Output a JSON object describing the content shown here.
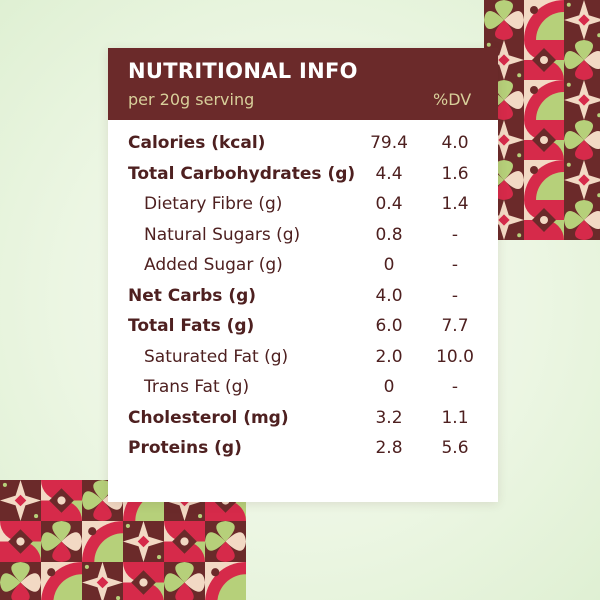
{
  "card": {
    "title": "NUTRITIONAL INFO",
    "subtitle": "per 20g serving",
    "dv_header": "%DV"
  },
  "rows": [
    {
      "label": "Calories (kcal)",
      "amount": "79.4",
      "dv": "4.0",
      "bold": true
    },
    {
      "label": "Total Carbohydrates (g)",
      "amount": "4.4",
      "dv": "1.6",
      "bold": true
    },
    {
      "label": "Dietary Fibre (g)",
      "amount": "0.4",
      "dv": "1.4",
      "bold": false
    },
    {
      "label": "Natural Sugars (g)",
      "amount": "0.8",
      "dv": "-",
      "bold": false
    },
    {
      "label": "Added Sugar (g)",
      "amount": "0",
      "dv": "-",
      "bold": false
    },
    {
      "label": "Net Carbs (g)",
      "amount": "4.0",
      "dv": "-",
      "bold": true
    },
    {
      "label": "Total Fats (g)",
      "amount": "6.0",
      "dv": "7.7",
      "bold": true
    },
    {
      "label": "Saturated Fat (g)",
      "amount": "2.0",
      "dv": "10.0",
      "bold": false
    },
    {
      "label": "Trans Fat (g)",
      "amount": "0",
      "dv": "-",
      "bold": false
    },
    {
      "label": "Cholesterol (mg)",
      "amount": "3.2",
      "dv": "1.1",
      "bold": true
    },
    {
      "label": "Proteins (g)",
      "amount": "2.8",
      "dv": "5.6",
      "bold": true
    }
  ],
  "colors": {
    "header_background": "#6b2a2a",
    "header_title": "#ffffff",
    "header_subtitle": "#d8cf9a",
    "row_text": "#4e2020",
    "page_background": "#ecf6e3",
    "pattern_maroon": "#6b2a2a",
    "pattern_crimson": "#d62a4a",
    "pattern_green": "#b6d07a",
    "pattern_cream": "#f2d9c4"
  }
}
